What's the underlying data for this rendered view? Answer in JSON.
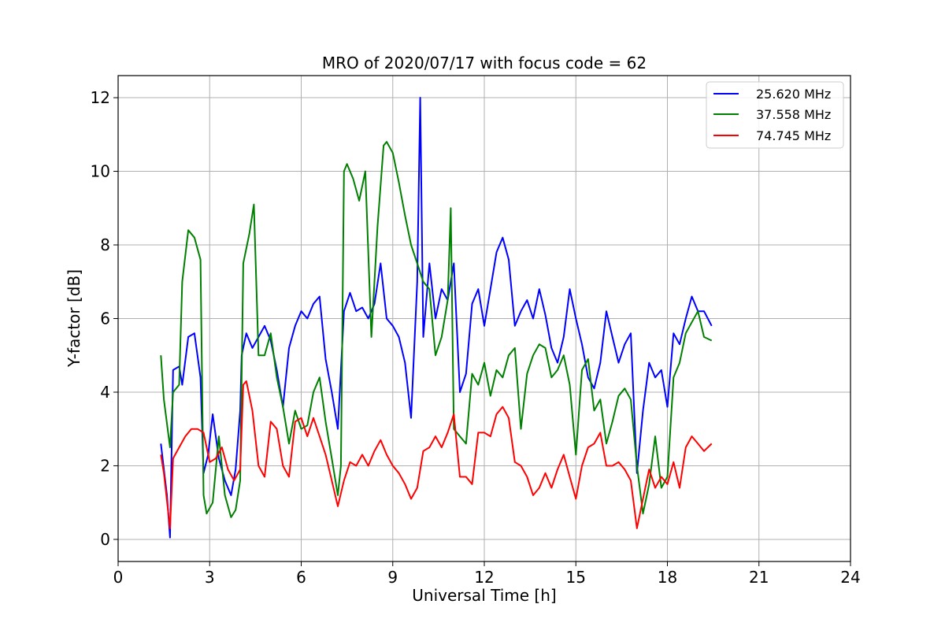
{
  "chart_data": {
    "type": "line",
    "title": "MRO of 2020/07/17 with focus code = 62",
    "xlabel": "Universal Time [h]",
    "ylabel": "Y-factor [dB]",
    "xlim": [
      0,
      24
    ],
    "ylim": [
      -0.6,
      12.6
    ],
    "xticks": [
      0,
      3,
      6,
      9,
      12,
      15,
      18,
      21,
      24
    ],
    "yticks": [
      0,
      2,
      4,
      6,
      8,
      10,
      12
    ],
    "grid": true,
    "legend_position": "top-right",
    "series": [
      {
        "name": "25.620 MHz",
        "color": "#0000ff",
        "x": [
          1.4,
          1.6,
          1.7,
          1.8,
          2.0,
          2.1,
          2.3,
          2.5,
          2.7,
          2.8,
          2.95,
          3.1,
          3.3,
          3.5,
          3.7,
          3.85,
          4.0,
          4.05,
          4.2,
          4.4,
          4.6,
          4.8,
          5.0,
          5.2,
          5.4,
          5.6,
          5.8,
          6.0,
          6.2,
          6.4,
          6.6,
          6.8,
          7.0,
          7.2,
          7.4,
          7.6,
          7.8,
          8.0,
          8.2,
          8.4,
          8.6,
          8.8,
          9.0,
          9.2,
          9.4,
          9.6,
          9.8,
          9.9,
          10.0,
          10.2,
          10.4,
          10.6,
          10.8,
          11.0,
          11.2,
          11.4,
          11.6,
          11.8,
          12.0,
          12.2,
          12.4,
          12.6,
          12.8,
          13.0,
          13.2,
          13.4,
          13.6,
          13.8,
          14.0,
          14.2,
          14.4,
          14.6,
          14.8,
          15.0,
          15.2,
          15.4,
          15.6,
          15.8,
          16.0,
          16.2,
          16.4,
          16.6,
          16.8,
          17.0,
          17.2,
          17.4,
          17.6,
          17.8,
          18.0,
          18.2,
          18.4,
          18.6,
          18.8,
          19.0,
          19.2,
          19.45
        ],
        "values": [
          2.6,
          1.2,
          0.05,
          4.6,
          4.7,
          4.2,
          5.5,
          5.6,
          4.4,
          1.8,
          2.3,
          3.4,
          2.2,
          1.6,
          1.2,
          1.9,
          3.5,
          5.0,
          5.6,
          5.2,
          5.5,
          5.8,
          5.4,
          4.6,
          3.6,
          5.2,
          5.8,
          6.2,
          6.0,
          6.4,
          6.6,
          4.9,
          4.0,
          3.0,
          6.2,
          6.7,
          6.2,
          6.3,
          6.0,
          6.4,
          7.5,
          6.0,
          5.8,
          5.5,
          4.8,
          3.3,
          7.0,
          12.0,
          5.5,
          7.5,
          6.0,
          6.8,
          6.5,
          7.5,
          4.0,
          4.5,
          6.4,
          6.8,
          5.8,
          6.8,
          7.8,
          8.2,
          7.6,
          5.8,
          6.2,
          6.5,
          6.0,
          6.8,
          6.1,
          5.2,
          4.8,
          5.5,
          6.8,
          6.0,
          5.3,
          4.4,
          4.1,
          4.8,
          6.2,
          5.5,
          4.8,
          5.3,
          5.6,
          1.8,
          3.5,
          4.8,
          4.4,
          4.6,
          3.6,
          5.6,
          5.3,
          6.0,
          6.6,
          6.2,
          6.2,
          5.8
        ]
      },
      {
        "name": "37.558 MHz",
        "color": "#008000",
        "x": [
          1.4,
          1.5,
          1.7,
          1.8,
          2.0,
          2.1,
          2.3,
          2.5,
          2.7,
          2.8,
          2.9,
          3.1,
          3.3,
          3.5,
          3.7,
          3.85,
          4.0,
          4.1,
          4.3,
          4.45,
          4.6,
          4.8,
          5.0,
          5.2,
          5.4,
          5.6,
          5.8,
          6.0,
          6.2,
          6.4,
          6.6,
          6.8,
          7.0,
          7.2,
          7.3,
          7.4,
          7.5,
          7.7,
          7.9,
          8.1,
          8.3,
          8.5,
          8.7,
          8.8,
          9.0,
          9.2,
          9.4,
          9.6,
          9.8,
          10.0,
          10.2,
          10.4,
          10.6,
          10.8,
          10.9,
          11.0,
          11.2,
          11.4,
          11.6,
          11.8,
          12.0,
          12.2,
          12.4,
          12.6,
          12.8,
          13.0,
          13.2,
          13.4,
          13.6,
          13.8,
          14.0,
          14.2,
          14.4,
          14.6,
          14.8,
          15.0,
          15.2,
          15.4,
          15.6,
          15.8,
          16.0,
          16.2,
          16.4,
          16.6,
          16.8,
          17.0,
          17.2,
          17.4,
          17.6,
          17.8,
          18.0,
          18.2,
          18.4,
          18.6,
          18.8,
          19.0,
          19.2,
          19.45
        ],
        "values": [
          5.0,
          3.8,
          2.5,
          4.0,
          4.2,
          7.0,
          8.4,
          8.2,
          7.6,
          1.2,
          0.7,
          1.0,
          2.8,
          1.2,
          0.6,
          0.8,
          1.6,
          7.5,
          8.3,
          9.1,
          5.0,
          5.0,
          5.6,
          4.4,
          3.6,
          2.6,
          3.5,
          3.0,
          3.1,
          4.0,
          4.4,
          3.2,
          2.2,
          1.2,
          2.0,
          10.0,
          10.2,
          9.8,
          9.2,
          10.0,
          5.5,
          8.5,
          10.7,
          10.8,
          10.5,
          9.7,
          8.8,
          8.0,
          7.5,
          7.0,
          6.8,
          5.0,
          5.5,
          6.5,
          9.0,
          3.0,
          2.8,
          2.6,
          4.5,
          4.2,
          4.8,
          3.9,
          4.6,
          4.4,
          5.0,
          5.2,
          3.0,
          4.5,
          5.0,
          5.3,
          5.2,
          4.4,
          4.6,
          5.0,
          4.2,
          2.3,
          4.6,
          4.9,
          3.5,
          3.8,
          2.6,
          3.2,
          3.9,
          4.1,
          3.8,
          2.0,
          0.7,
          1.5,
          2.8,
          1.4,
          1.7,
          4.4,
          4.8,
          5.6,
          5.9,
          6.2,
          5.5,
          5.4
        ]
      },
      {
        "name": "74.745 MHz",
        "color": "#ff0000",
        "x": [
          1.4,
          1.5,
          1.7,
          1.8,
          2.0,
          2.2,
          2.4,
          2.6,
          2.8,
          3.0,
          3.2,
          3.4,
          3.6,
          3.8,
          4.0,
          4.1,
          4.2,
          4.4,
          4.6,
          4.8,
          5.0,
          5.2,
          5.4,
          5.6,
          5.8,
          6.0,
          6.2,
          6.4,
          6.6,
          6.8,
          7.0,
          7.2,
          7.4,
          7.6,
          7.8,
          8.0,
          8.2,
          8.4,
          8.6,
          8.8,
          9.0,
          9.2,
          9.4,
          9.6,
          9.8,
          10.0,
          10.2,
          10.4,
          10.6,
          10.8,
          11.0,
          11.2,
          11.4,
          11.6,
          11.8,
          12.0,
          12.2,
          12.4,
          12.6,
          12.8,
          13.0,
          13.2,
          13.4,
          13.6,
          13.8,
          14.0,
          14.2,
          14.4,
          14.6,
          14.8,
          15.0,
          15.2,
          15.4,
          15.6,
          15.8,
          16.0,
          16.2,
          16.4,
          16.6,
          16.8,
          17.0,
          17.2,
          17.4,
          17.6,
          17.8,
          18.0,
          18.2,
          18.4,
          18.6,
          18.8,
          19.0,
          19.2,
          19.45
        ],
        "values": [
          2.3,
          1.8,
          0.3,
          2.2,
          2.5,
          2.8,
          3.0,
          3.0,
          2.9,
          2.1,
          2.2,
          2.5,
          1.9,
          1.6,
          1.9,
          4.2,
          4.3,
          3.5,
          2.0,
          1.7,
          3.2,
          3.0,
          2.0,
          1.7,
          3.2,
          3.3,
          2.8,
          3.3,
          2.8,
          2.3,
          1.6,
          0.9,
          1.6,
          2.1,
          2.0,
          2.3,
          2.0,
          2.4,
          2.7,
          2.3,
          2.0,
          1.8,
          1.5,
          1.1,
          1.4,
          2.4,
          2.5,
          2.8,
          2.5,
          2.9,
          3.4,
          1.7,
          1.7,
          1.5,
          2.9,
          2.9,
          2.8,
          3.4,
          3.6,
          3.3,
          2.1,
          2.0,
          1.7,
          1.2,
          1.4,
          1.8,
          1.4,
          1.9,
          2.3,
          1.7,
          1.1,
          2.0,
          2.5,
          2.6,
          2.9,
          2.0,
          2.0,
          2.1,
          1.9,
          1.6,
          0.3,
          1.1,
          1.9,
          1.4,
          1.7,
          1.5,
          2.1,
          1.4,
          2.5,
          2.8,
          2.6,
          2.4,
          2.6
        ]
      }
    ]
  }
}
